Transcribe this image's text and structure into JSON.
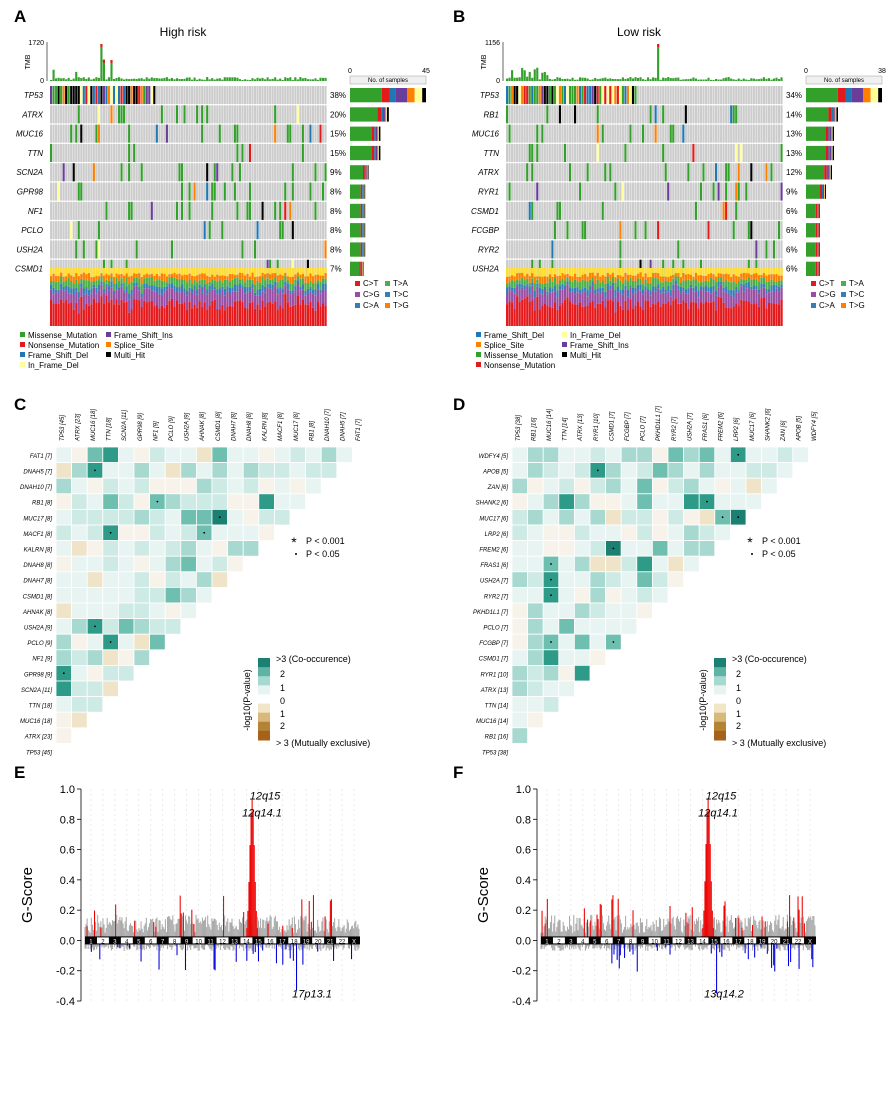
{
  "chart_data": [
    {
      "panel": "A",
      "type": "heatmap",
      "subtype": "oncoplot",
      "title": "High risk",
      "tmb": {
        "label": "TMB",
        "ymax": 1720,
        "ymin": 0
      },
      "side_axis": {
        "label": "No. of samples",
        "min": 0,
        "max": 45
      },
      "genes": [
        "TP53",
        "ATRX",
        "MUC16",
        "TTN",
        "SCN2A",
        "GPR98",
        "NF1",
        "PCLO",
        "USH2A",
        "CSMD1"
      ],
      "percentages": [
        "38%",
        "20%",
        "15%",
        "15%",
        "9%",
        "8%",
        "8%",
        "8%",
        "8%",
        "7%"
      ],
      "side_counts": [
        45,
        23,
        18,
        18,
        11,
        9,
        9,
        9,
        9,
        8
      ],
      "titv_legend": [
        "C>T",
        "T>A",
        "C>G",
        "T>C",
        "C>A",
        "T>G"
      ],
      "variant_legend": [
        "Missense_Mutation",
        "Frame_Shift_Ins",
        "Nonsense_Mutation",
        "Splice_Site",
        "Frame_Shift_Del",
        "Multi_Hit",
        "In_Frame_Del"
      ]
    },
    {
      "panel": "B",
      "type": "heatmap",
      "subtype": "oncoplot",
      "title": "Low risk",
      "tmb": {
        "label": "TMB",
        "ymax": 1156,
        "ymin": 0
      },
      "side_axis": {
        "label": "No. of samples",
        "min": 0,
        "max": 38
      },
      "genes": [
        "TP53",
        "RB1",
        "MUC16",
        "TTN",
        "ATRX",
        "RYR1",
        "CSMD1",
        "FCGBP",
        "RYR2",
        "USH2A"
      ],
      "percentages": [
        "34%",
        "14%",
        "13%",
        "13%",
        "12%",
        "9%",
        "6%",
        "6%",
        "6%",
        "6%"
      ],
      "side_counts": [
        38,
        16,
        14,
        14,
        13,
        10,
        7,
        7,
        7,
        7
      ],
      "titv_legend": [
        "C>T",
        "T>A",
        "C>G",
        "T>C",
        "C>A",
        "T>G"
      ],
      "variant_legend": [
        "Frame_Shift_Del",
        "In_Frame_Del",
        "Splice_Site",
        "Frame_Shift_Ins",
        "Missense_Mutation",
        "Multi_Hit",
        "Nonsense_Mutation"
      ]
    },
    {
      "panel": "C",
      "type": "heatmap",
      "subtype": "somatic interaction",
      "col_labels": [
        "TP53 [45]",
        "ATRX [23]",
        "MUC16 [18]",
        "TTN [18]",
        "SCN2A [11]",
        "GPR98 [9]",
        "NF1 [9]",
        "PCLO [9]",
        "USH2A [9]",
        "AHNAK [8]",
        "CSMD1 [8]",
        "DNAH7 [8]",
        "DNAH8 [8]",
        "KALRN [8]",
        "MACF1 [8]",
        "MUC17 [8]",
        "RB1 [8]",
        "DNAH10 [7]",
        "DNAH5 [7]",
        "FAT1 [7]"
      ],
      "row_labels": [
        "FAT1 [7]",
        "DNAH5 [7]",
        "DNAH10 [7]",
        "RB1 [8]",
        "MUC17 [8]",
        "MACF1 [8]",
        "KALRN [8]",
        "DNAH8 [8]",
        "DNAH7 [8]",
        "CSMD1 [8]",
        "AHNAK [8]",
        "USH2A [9]",
        "PCLO [9]",
        "NF1 [9]",
        "GPR98 [9]",
        "SCN2A [11]",
        "TTN [18]",
        "MUC16 [18]",
        "ATRX [23]",
        "TP53 [45]"
      ],
      "sig_legend": [
        "P < 0.001",
        "P < 0.05"
      ],
      "scale_label": "-log10(P-value)",
      "scale_top": ">3 (Co-occurence)",
      "scale_bottom": "> 3 (Mutually exclusive)",
      "scale_ticks": [
        "2",
        "1",
        "0",
        "1",
        "2"
      ]
    },
    {
      "panel": "D",
      "type": "heatmap",
      "subtype": "somatic interaction",
      "col_labels": [
        "TP53 [38]",
        "RB1 [16]",
        "MUC16 [14]",
        "TTN [14]",
        "ATRX [13]",
        "RYR1 [10]",
        "CSMD1 [7]",
        "FCGBP [7]",
        "PCLO [7]",
        "PKHD1L1 [7]",
        "RYR2 [7]",
        "USH2A [7]",
        "FRAS1 [6]",
        "FREM2 [6]",
        "LRP2 [6]",
        "MUC17 [6]",
        "SHANK2 [6]",
        "ZAN [6]",
        "APOB [5]",
        "WDFY4 [5]"
      ],
      "row_labels": [
        "WDFY4 [5]",
        "APOB [5]",
        "ZAN [6]",
        "SHANK2 [6]",
        "MUC17 [6]",
        "LRP2 [6]",
        "FREM2 [6]",
        "FRAS1 [6]",
        "USH2A [7]",
        "RYR2 [7]",
        "PKHD1L1 [7]",
        "PCLO [7]",
        "FCGBP [7]",
        "CSMD1 [7]",
        "RYR1 [10]",
        "ATRX [13]",
        "TTN [14]",
        "MUC16 [14]",
        "RB1 [16]",
        "TP53 [38]"
      ],
      "sig_legend": [
        "P < 0.001",
        "P < 0.05"
      ],
      "scale_label": "-log10(P-value)",
      "scale_top": ">3 (Co-occurence)",
      "scale_bottom": "> 3 (Mutually exclusive)",
      "scale_ticks": [
        "2",
        "1",
        "0",
        "1",
        "2"
      ]
    },
    {
      "panel": "E",
      "type": "bar",
      "ylabel": "G-Score",
      "ylim": [
        -0.4,
        1.0
      ],
      "y_ticks": [
        "1.0",
        "0.8",
        "0.6",
        "0.4",
        "0.2",
        "0.0",
        "-0.2",
        "-0.4"
      ],
      "annotations": [
        {
          "label": "12q15",
          "value": 0.93
        },
        {
          "label": "12q14.1",
          "value": 0.88
        },
        {
          "label": "17p13.1",
          "value": -0.33
        }
      ],
      "chromosomes": [
        "1",
        "2",
        "3",
        "4",
        "5",
        "6",
        "7",
        "8",
        "9",
        "10",
        "11",
        "12",
        "13",
        "14",
        "15",
        "16",
        "17",
        "18",
        "19",
        "20",
        "21",
        "22",
        "X"
      ]
    },
    {
      "panel": "F",
      "type": "bar",
      "ylabel": "G-Score",
      "ylim": [
        -0.4,
        1.0
      ],
      "y_ticks": [
        "1.0",
        "0.8",
        "0.6",
        "0.4",
        "0.2",
        "0.0",
        "-0.2",
        "-0.4"
      ],
      "annotations": [
        {
          "label": "12q15",
          "value": 0.94
        },
        {
          "label": "12q14.1",
          "value": 0.88
        },
        {
          "label": "13q14.2",
          "value": -0.35
        }
      ],
      "chromosomes": [
        "1",
        "2",
        "3",
        "4",
        "5",
        "6",
        "7",
        "8",
        "9",
        "10",
        "11",
        "12",
        "13",
        "14",
        "15",
        "16",
        "17",
        "18",
        "19",
        "20",
        "21",
        "22",
        "X"
      ]
    }
  ],
  "colors": {
    "missense": "#33a02c",
    "nonsense": "#e31a1c",
    "frame_shift_del": "#1f78b4",
    "frame_shift_ins": "#6a3d9a",
    "splice_site": "#ff7f00",
    "in_frame_del": "#ffff99",
    "multi_hit": "#000000",
    "co_occurrence": "#1b7f72",
    "mutually_exclusive": "#a6611a",
    "amplification": "#ee0000",
    "deletion": "#0000dd",
    "background": "#cccccc",
    "ctt": "#e41a1c",
    "cg": "#377eb8",
    "ca": "#4daf4a"
  }
}
